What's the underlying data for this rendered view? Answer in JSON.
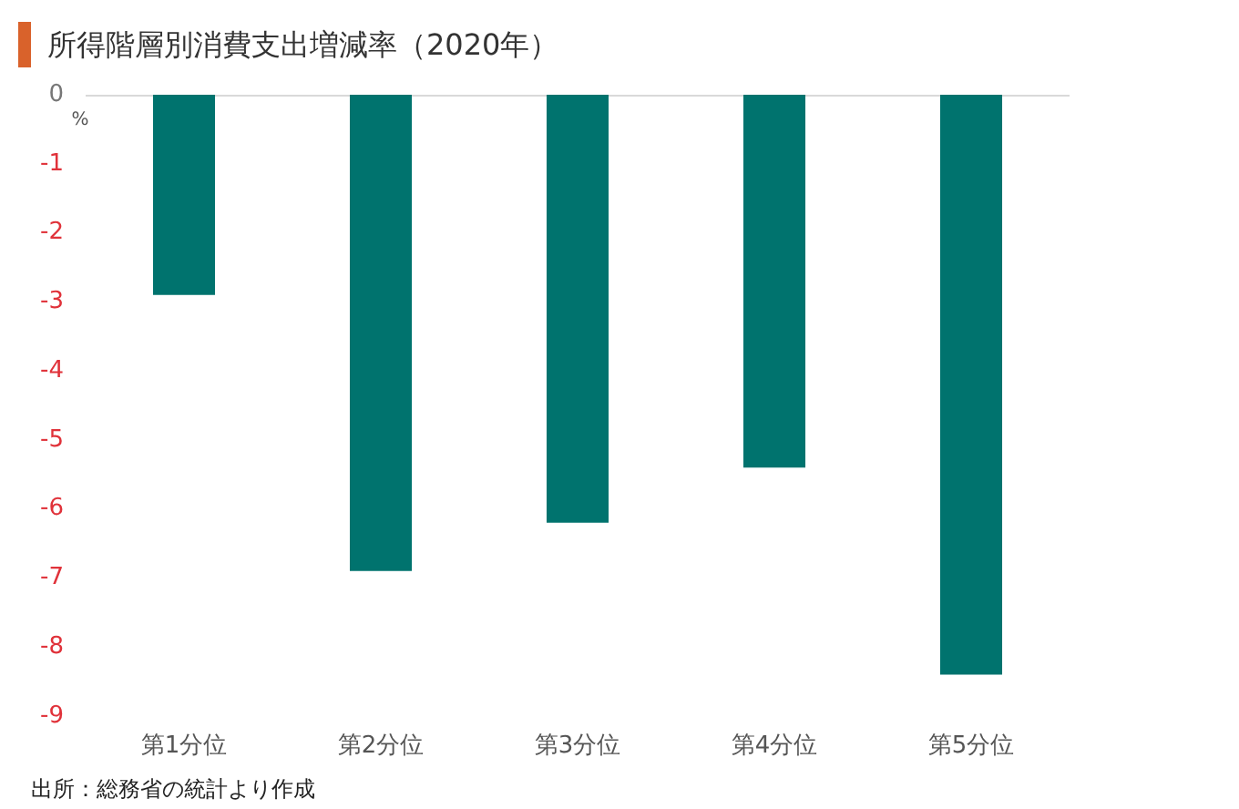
{
  "chart_data": {
    "type": "bar",
    "title": "所得階層別消費支出増減率（2020年）",
    "ylabel": "%",
    "categories": [
      "第1分位",
      "第2分位",
      "第3分位",
      "第4分位",
      "第5分位"
    ],
    "values": [
      -2.9,
      -6.9,
      -6.2,
      -5.4,
      -8.4
    ],
    "color": "#00736e",
    "ylim": [
      -9,
      0
    ],
    "yticks": [
      0,
      -1,
      -2,
      -3,
      -4,
      -5,
      -6,
      -7,
      -8,
      -9
    ],
    "annotations": [
      "出所：総務省の統計より作成"
    ]
  }
}
